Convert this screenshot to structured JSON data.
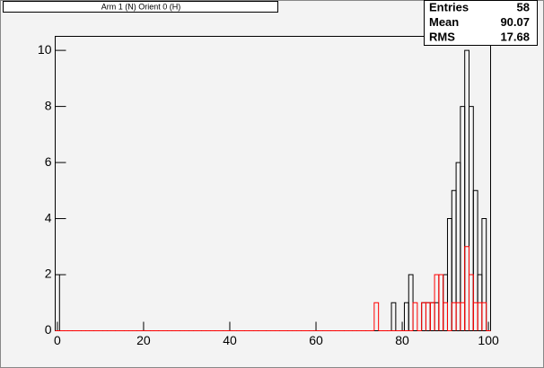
{
  "chart_data": {
    "type": "histogram",
    "title": "Arm 1 (N) Orient 0 (H)",
    "bins": [
      -0.5,
      0.5,
      1.5,
      2.5,
      3.5,
      4.5,
      5.5,
      6.5,
      7.5,
      8.5,
      9.5,
      10.5,
      11.5,
      12.5,
      13.5,
      14.5,
      15.5,
      16.5,
      17.5,
      18.5,
      19.5,
      20.5,
      21.5,
      22.5,
      23.5,
      24.5,
      25.5,
      26.5,
      27.5,
      28.5,
      29.5,
      30.5,
      31.5,
      32.5,
      33.5,
      34.5,
      35.5,
      36.5,
      37.5,
      38.5,
      39.5,
      40.5,
      41.5,
      42.5,
      43.5,
      44.5,
      45.5,
      46.5,
      47.5,
      48.5,
      49.5,
      50.5,
      51.5,
      52.5,
      53.5,
      54.5,
      55.5,
      56.5,
      57.5,
      58.5,
      59.5,
      60.5,
      61.5,
      62.5,
      63.5,
      64.5,
      65.5,
      66.5,
      67.5,
      68.5,
      69.5,
      70.5,
      71.5,
      72.5,
      73.5,
      74.5,
      75.5,
      76.5,
      77.5,
      78.5,
      79.5,
      80.5,
      81.5,
      82.5,
      83.5,
      84.5,
      85.5,
      86.5,
      87.5,
      88.5,
      89.5,
      90.5,
      91.5,
      92.5,
      93.5,
      94.5,
      95.5,
      96.5,
      97.5,
      98.5,
      99.5,
      100.5
    ],
    "series": [
      {
        "color": "#000000",
        "values": [
          2,
          0,
          0,
          0,
          0,
          0,
          0,
          0,
          0,
          0,
          0,
          0,
          0,
          0,
          0,
          0,
          0,
          0,
          0,
          0,
          0,
          0,
          0,
          0,
          0,
          0,
          0,
          0,
          0,
          0,
          0,
          0,
          0,
          0,
          0,
          0,
          0,
          0,
          0,
          0,
          0,
          0,
          0,
          0,
          0,
          0,
          0,
          0,
          0,
          0,
          0,
          0,
          0,
          0,
          0,
          0,
          0,
          0,
          0,
          0,
          0,
          0,
          0,
          0,
          0,
          0,
          0,
          0,
          0,
          0,
          0,
          0,
          0,
          0,
          0,
          0,
          0,
          0,
          1,
          0,
          0,
          1,
          2,
          0,
          0,
          1,
          1,
          1,
          1,
          2,
          2,
          4,
          5,
          6,
          8,
          10,
          8,
          5,
          2,
          4,
          0
        ]
      },
      {
        "color": "#ff0000",
        "values": [
          0,
          0,
          0,
          0,
          0,
          0,
          0,
          0,
          0,
          0,
          0,
          0,
          0,
          0,
          0,
          0,
          0,
          0,
          0,
          0,
          0,
          0,
          0,
          0,
          0,
          0,
          0,
          0,
          0,
          0,
          0,
          0,
          0,
          0,
          0,
          0,
          0,
          0,
          0,
          0,
          0,
          0,
          0,
          0,
          0,
          0,
          0,
          0,
          0,
          0,
          0,
          0,
          0,
          0,
          0,
          0,
          0,
          0,
          0,
          0,
          0,
          0,
          0,
          0,
          0,
          0,
          0,
          0,
          0,
          0,
          0,
          0,
          0,
          0,
          1,
          0,
          0,
          0,
          0,
          0,
          0,
          0,
          0,
          1,
          0,
          1,
          1,
          1,
          2,
          2,
          1,
          0,
          1,
          1,
          1,
          3,
          2,
          1,
          1,
          1,
          0
        ]
      }
    ],
    "xlim": [
      -0.5,
      100.5
    ],
    "xticks": [
      0,
      20,
      40,
      60,
      80,
      100
    ],
    "ylim": [
      0,
      10.5
    ],
    "yticks": [
      0,
      2,
      4,
      6,
      8,
      10
    ],
    "stats": {
      "labels": [
        "Entries",
        "Mean",
        "RMS"
      ],
      "values": [
        58,
        90.07,
        17.68
      ]
    }
  }
}
